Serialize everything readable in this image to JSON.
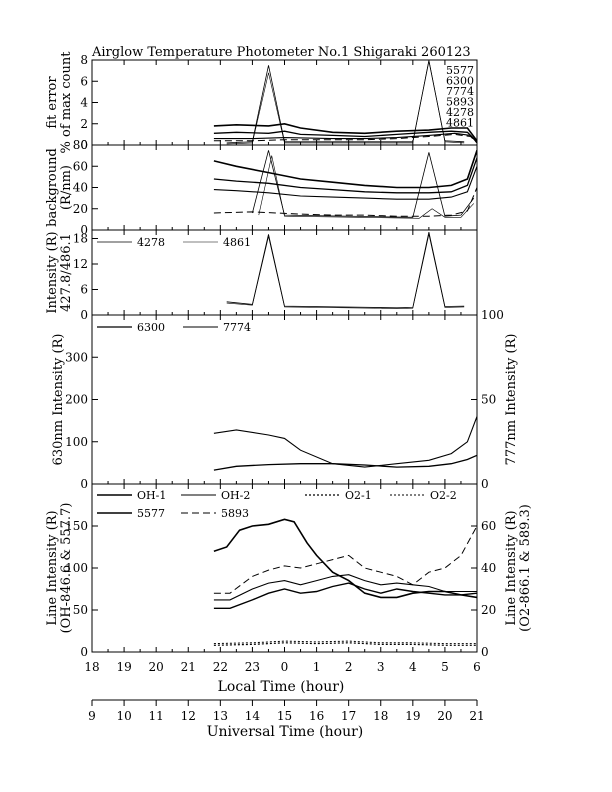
{
  "title": "Airglow Temperature Photometer No.1  Shigaraki  260123",
  "local_axis": {
    "label": "Local Time (hour)",
    "ticks": [
      "18",
      "19",
      "20",
      "21",
      "22",
      "23",
      "0",
      "1",
      "2",
      "3",
      "4",
      "5",
      "6"
    ]
  },
  "ut_axis": {
    "label": "Universal Time (hour)",
    "ticks": [
      "9",
      "10",
      "11",
      "12",
      "13",
      "14",
      "15",
      "16",
      "17",
      "18",
      "19",
      "20",
      "21"
    ]
  },
  "chart_data": [
    {
      "type": "line",
      "ylabel": [
        "fit error",
        "% of max count"
      ],
      "ylim": [
        0,
        8
      ],
      "yticks": [
        "0",
        "2",
        "4",
        "6",
        "8"
      ],
      "labels_right": [
        "5577",
        "6300",
        "7774",
        "5893",
        "4278",
        "4861"
      ],
      "series": [
        {
          "name": "5577",
          "x": [
            12.8,
            13.5,
            14.5,
            15.0,
            15.5,
            16.5,
            17.5,
            18.5,
            19.5,
            20.2,
            20.7,
            21.0
          ],
          "y": [
            1.8,
            1.9,
            1.8,
            2.0,
            1.6,
            1.2,
            1.1,
            1.3,
            1.4,
            1.6,
            1.6,
            0.4
          ]
        },
        {
          "name": "6300",
          "x": [
            12.8,
            13.5,
            14.5,
            15.0,
            15.5,
            16.5,
            17.5,
            18.5,
            19.5,
            20.2,
            20.7,
            21.0
          ],
          "y": [
            1.1,
            1.2,
            1.1,
            1.3,
            1.0,
            0.9,
            0.8,
            1.0,
            1.2,
            1.3,
            1.2,
            0.3
          ]
        },
        {
          "name": "7774",
          "x": [
            12.8,
            14.0,
            15.0,
            16.5,
            17.5,
            18.5,
            19.5,
            20.3,
            20.8,
            21.0
          ],
          "y": [
            0.6,
            0.6,
            0.7,
            0.6,
            0.6,
            0.7,
            0.9,
            1.1,
            0.9,
            0.2
          ]
        },
        {
          "name": "5893",
          "x": [
            12.8,
            14.0,
            15.0,
            16.5,
            17.5,
            18.5,
            19.5,
            20.3,
            20.8,
            21.0
          ],
          "y": [
            0.4,
            0.4,
            0.5,
            0.5,
            0.5,
            0.6,
            0.8,
            1.0,
            0.8,
            0.2
          ]
        },
        {
          "name": "4278",
          "x": [
            13.2,
            14.0,
            14.5,
            15.0,
            18.5,
            19.0,
            19.5,
            20.0,
            20.6
          ],
          "y": [
            0.2,
            0.3,
            7.5,
            0.3,
            0.3,
            0.3,
            7.9,
            0.4,
            0.3
          ]
        },
        {
          "name": "4861",
          "x": [
            13.2,
            14.0,
            14.5,
            15.0,
            16.5,
            18.5,
            19.0,
            19.5,
            20.0,
            20.6
          ],
          "y": [
            0.1,
            0.2,
            6.8,
            0.2,
            0.2,
            0.2,
            0.2,
            8.0,
            0.3,
            0.2
          ]
        }
      ]
    },
    {
      "type": "line",
      "ylabel": [
        "background",
        "(R/nm)"
      ],
      "ylim": [
        0,
        80
      ],
      "yticks": [
        "0",
        "20",
        "40",
        "60",
        "80"
      ],
      "series": [
        {
          "name": "5577",
          "x": [
            12.8,
            13.5,
            14.5,
            15.5,
            16.5,
            17.5,
            18.5,
            19.5,
            20.2,
            20.7,
            21.0
          ],
          "y": [
            65,
            60,
            54,
            48,
            45,
            42,
            40,
            40,
            42,
            48,
            75
          ]
        },
        {
          "name": "6300",
          "x": [
            12.8,
            13.5,
            14.5,
            15.5,
            16.5,
            17.5,
            18.5,
            19.5,
            20.2,
            20.7,
            21.0
          ],
          "y": [
            48,
            46,
            44,
            40,
            38,
            36,
            35,
            35,
            36,
            42,
            68
          ]
        },
        {
          "name": "7774",
          "x": [
            12.8,
            13.5,
            14.5,
            15.5,
            16.5,
            17.5,
            18.5,
            19.5,
            20.2,
            20.7,
            21.0
          ],
          "y": [
            38,
            37,
            35,
            32,
            31,
            30,
            29,
            29,
            31,
            36,
            60
          ]
        },
        {
          "name": "5893",
          "x": [
            12.8,
            14.0,
            15.5,
            16.5,
            17.5,
            18.5,
            19.5,
            20.2,
            20.7,
            21.0
          ],
          "y": [
            16,
            17,
            15,
            14,
            14,
            13,
            13,
            14,
            18,
            40
          ]
        },
        {
          "name": "4278",
          "x": [
            14.0,
            14.5,
            15.0,
            19.0,
            19.5,
            20.0,
            20.5,
            20.9
          ],
          "y": [
            16,
            75,
            14,
            12,
            73,
            13,
            14,
            30
          ]
        },
        {
          "name": "4861",
          "x": [
            14.2,
            14.6,
            15.0,
            19.2,
            19.6,
            20.0,
            20.5,
            20.9
          ],
          "y": [
            14,
            70,
            13,
            11,
            20,
            12,
            12,
            25
          ]
        }
      ]
    },
    {
      "type": "line",
      "ylabel": [
        "Intensity (R)",
        "427.8/486.1"
      ],
      "ylim": [
        0,
        20
      ],
      "yticks": [
        "0",
        "6",
        "12",
        "18"
      ],
      "legend": [
        "4278",
        "4861"
      ],
      "series": [
        {
          "name": "4278",
          "x": [
            13.2,
            14.0,
            14.5,
            15.0,
            18.5,
            19.0,
            19.5,
            20.0,
            20.6
          ],
          "y": [
            3.1,
            2.5,
            19.0,
            2.1,
            1.7,
            1.8,
            19.5,
            2.0,
            2.1
          ]
        },
        {
          "name": "4861",
          "x": [
            13.2,
            14.0,
            14.5,
            15.0,
            18.5,
            19.0,
            19.5,
            20.0,
            20.6
          ],
          "y": [
            2.8,
            2.3,
            18.5,
            1.9,
            1.5,
            1.6,
            19.0,
            1.8,
            1.9
          ]
        }
      ]
    },
    {
      "type": "line",
      "ylabel_left": "630nm Intensity (R)",
      "ylabel_right": "777nm Intensity (R)",
      "ylim": [
        0,
        400
      ],
      "yticks": [
        "0",
        "100",
        "200",
        "300"
      ],
      "yticks_right": [
        "0",
        "50",
        "100"
      ],
      "ylim_right": [
        0,
        100
      ],
      "legend": [
        "6300",
        "7774"
      ],
      "series": [
        {
          "name": "6300",
          "x": [
            12.8,
            13.5,
            14.5,
            15.5,
            16.5,
            17.5,
            18.5,
            19.5,
            20.2,
            20.7,
            21.0
          ],
          "y": [
            33,
            42,
            46,
            48,
            48,
            45,
            40,
            42,
            48,
            58,
            68
          ]
        },
        {
          "name": "7774",
          "x": [
            12.8,
            13.5,
            14.5,
            15.0,
            15.5,
            16.5,
            17.5,
            18.5,
            19.5,
            20.2,
            20.7,
            21.0
          ],
          "y": [
            30,
            32,
            29,
            27,
            20,
            12,
            10,
            12,
            14,
            18,
            25,
            40
          ]
        }
      ]
    },
    {
      "type": "line",
      "ylabel_left": [
        "Line Intensity (R)",
        "(OH-846.6 & 557.7)"
      ],
      "ylabel_right": [
        "Line Intensity (R)",
        "(O2-866.1 & 589.3)"
      ],
      "ylim": [
        0,
        200
      ],
      "yticks": [
        "0",
        "50",
        "100",
        "150"
      ],
      "yticks_right": [
        "0",
        "20",
        "40",
        "60"
      ],
      "ylim_right": [
        0,
        80
      ],
      "legend": [
        "OH-1",
        "OH-2",
        "O2-1",
        "O2-2",
        "5577",
        "5893"
      ],
      "series": [
        {
          "name": "OH-1",
          "x": [
            12.8,
            13.3,
            14.0,
            14.5,
            15.0,
            15.5,
            16.0,
            16.5,
            17.0,
            17.5,
            18.0,
            18.5,
            19.0,
            19.5,
            20.0,
            20.5,
            21.0
          ],
          "y": [
            52,
            52,
            62,
            70,
            75,
            70,
            72,
            78,
            82,
            75,
            70,
            75,
            72,
            70,
            68,
            68,
            70
          ]
        },
        {
          "name": "OH-2",
          "x": [
            12.8,
            13.3,
            14.0,
            14.5,
            15.0,
            15.5,
            16.0,
            16.5,
            17.0,
            17.5,
            18.0,
            18.5,
            19.0,
            19.5,
            20.0,
            20.5,
            21.0
          ],
          "y": [
            62,
            62,
            75,
            82,
            85,
            80,
            85,
            90,
            92,
            85,
            80,
            82,
            80,
            78,
            72,
            72,
            72
          ]
        },
        {
          "name": "O2-1",
          "x": [
            12.8,
            14.0,
            15.0,
            16.0,
            17.0,
            18.0,
            19.0,
            20.0,
            21.0
          ],
          "y": [
            3.2,
            3.6,
            4.4,
            4.0,
            4.4,
            3.6,
            3.6,
            3.2,
            3.2
          ]
        },
        {
          "name": "O2-2",
          "x": [
            12.8,
            14.0,
            15.0,
            16.0,
            17.0,
            18.0,
            19.0,
            20.0,
            21.0
          ],
          "y": [
            4.0,
            4.4,
            5.2,
            4.8,
            5.2,
            4.4,
            4.4,
            4.0,
            4.0
          ]
        },
        {
          "name": "5577",
          "x": [
            12.8,
            13.2,
            13.6,
            14.0,
            14.5,
            15.0,
            15.3,
            15.7,
            16.0,
            16.5,
            17.0,
            17.5,
            18.0,
            18.5,
            19.0,
            19.5,
            20.0,
            20.5,
            21.0
          ],
          "y": [
            120,
            125,
            145,
            150,
            152,
            158,
            155,
            130,
            115,
            95,
            85,
            70,
            65,
            65,
            70,
            72,
            72,
            68,
            65
          ]
        },
        {
          "name": "5893",
          "x": [
            12.8,
            13.3,
            14.0,
            14.5,
            15.0,
            15.5,
            16.0,
            16.5,
            17.0,
            17.5,
            18.0,
            18.5,
            19.0,
            19.5,
            20.0,
            20.5,
            21.0
          ],
          "y": [
            28,
            28,
            36,
            39,
            41,
            40,
            42,
            44,
            46,
            40,
            38,
            36,
            32,
            38,
            40,
            46,
            60
          ]
        }
      ]
    }
  ]
}
